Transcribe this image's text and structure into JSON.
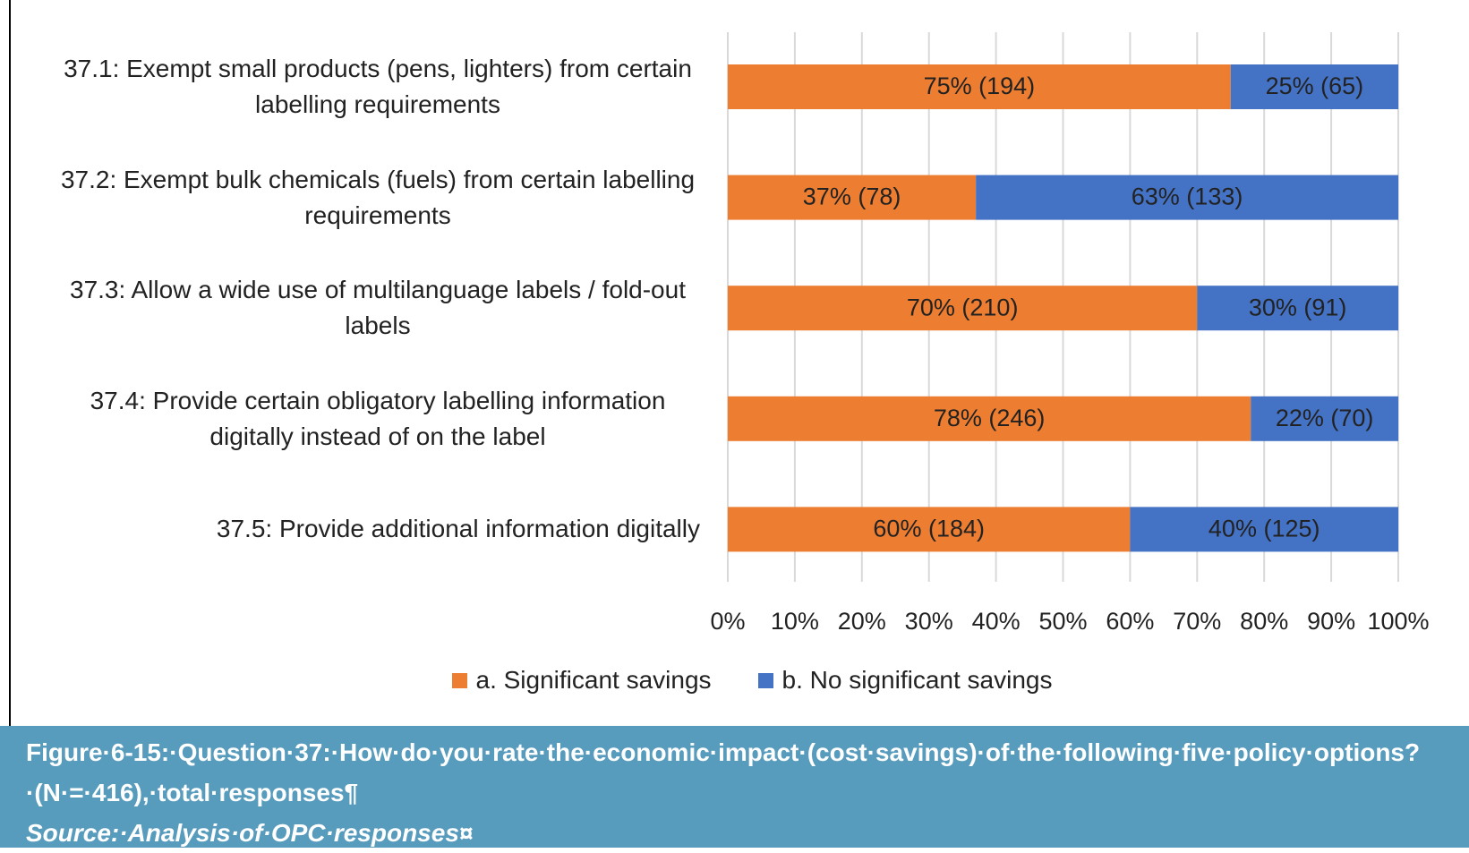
{
  "chart_data": {
    "type": "stacked-bar-horizontal",
    "categories": [
      "37.1: Exempt small products (pens, lighters) from certain labelling requirements",
      "37.2: Exempt bulk chemicals (fuels) from certain labelling requirements",
      "37.3: Allow a wide use of multilanguage labels / fold-out labels",
      "37.4: Provide certain obligatory labelling information digitally instead of on the label",
      "37.5: Provide additional information digitally"
    ],
    "series": [
      {
        "name": "a. Significant savings",
        "color": "#ed7d31",
        "values": [
          75,
          37,
          70,
          78,
          60
        ],
        "value_labels": [
          "75% (194)",
          "37% (78)",
          "70% (210)",
          "78% (246)",
          "60% (184)"
        ]
      },
      {
        "name": "b. No significant savings",
        "color": "#4472c4",
        "values": [
          25,
          63,
          30,
          22,
          40
        ],
        "value_labels": [
          "25% (65)",
          "63% (133)",
          "30% (91)",
          "22% (70)",
          "40% (125)"
        ]
      }
    ],
    "xlim": [
      0,
      100
    ],
    "xticks": [
      {
        "value": 0,
        "label": "0%"
      },
      {
        "value": 10,
        "label": "10%"
      },
      {
        "value": 20,
        "label": "20%"
      },
      {
        "value": 30,
        "label": "30%"
      },
      {
        "value": 40,
        "label": "40%"
      },
      {
        "value": 50,
        "label": "50%"
      },
      {
        "value": 60,
        "label": "60%"
      },
      {
        "value": 70,
        "label": "70%"
      },
      {
        "value": 80,
        "label": "80%"
      },
      {
        "value": 90,
        "label": "90%"
      },
      {
        "value": 100,
        "label": "100%"
      }
    ],
    "grid": true,
    "legend": "bottom"
  },
  "caption": {
    "title": "Figure·6‑15:·Question·37:·How·do·you·rate·the·economic·impact·(cost·savings)·of·the·following·five·policy·options?·(N·=·416),·total·responses¶",
    "source": "Source:·Analysis·of·OPC·responses¤"
  }
}
